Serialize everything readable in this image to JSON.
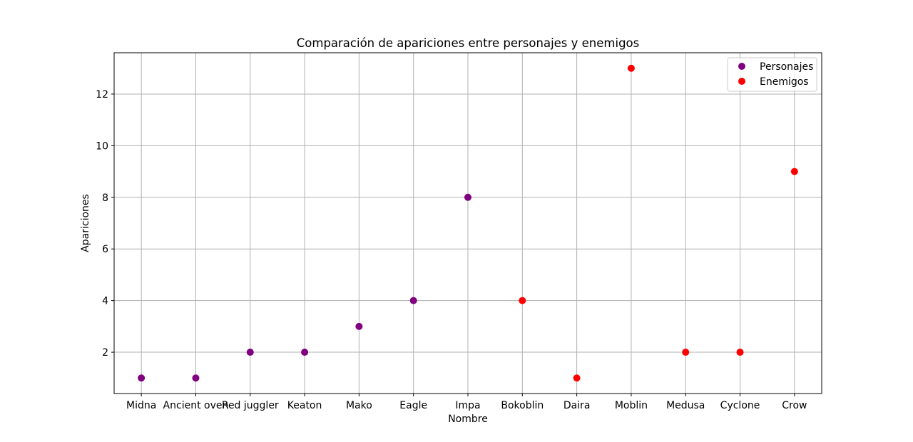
{
  "chart_data": {
    "type": "scatter",
    "title": "Comparación de apariciones entre personajes y enemigos",
    "xlabel": "Nombre",
    "ylabel": "Apariciones",
    "categories": [
      "Midna",
      "Ancient oven",
      "Red juggler",
      "Keaton",
      "Mako",
      "Eagle",
      "Impa",
      "Bokoblin",
      "Daira",
      "Moblin",
      "Medusa",
      "Cyclone",
      "Crow"
    ],
    "y_ticks": [
      2,
      4,
      6,
      8,
      10,
      12
    ],
    "ylim": [
      0.4,
      13.6
    ],
    "grid": true,
    "legend_position": "top-right",
    "series": [
      {
        "name": "Personajes",
        "color": "#800080",
        "points": [
          {
            "x": "Midna",
            "y": 1
          },
          {
            "x": "Ancient oven",
            "y": 1
          },
          {
            "x": "Red juggler",
            "y": 2
          },
          {
            "x": "Keaton",
            "y": 2
          },
          {
            "x": "Mako",
            "y": 3
          },
          {
            "x": "Eagle",
            "y": 4
          },
          {
            "x": "Impa",
            "y": 8
          }
        ]
      },
      {
        "name": "Enemigos",
        "color": "#ff0000",
        "points": [
          {
            "x": "Bokoblin",
            "y": 4
          },
          {
            "x": "Daira",
            "y": 1
          },
          {
            "x": "Moblin",
            "y": 13
          },
          {
            "x": "Medusa",
            "y": 2
          },
          {
            "x": "Cyclone",
            "y": 2
          },
          {
            "x": "Crow",
            "y": 9
          }
        ]
      }
    ]
  }
}
